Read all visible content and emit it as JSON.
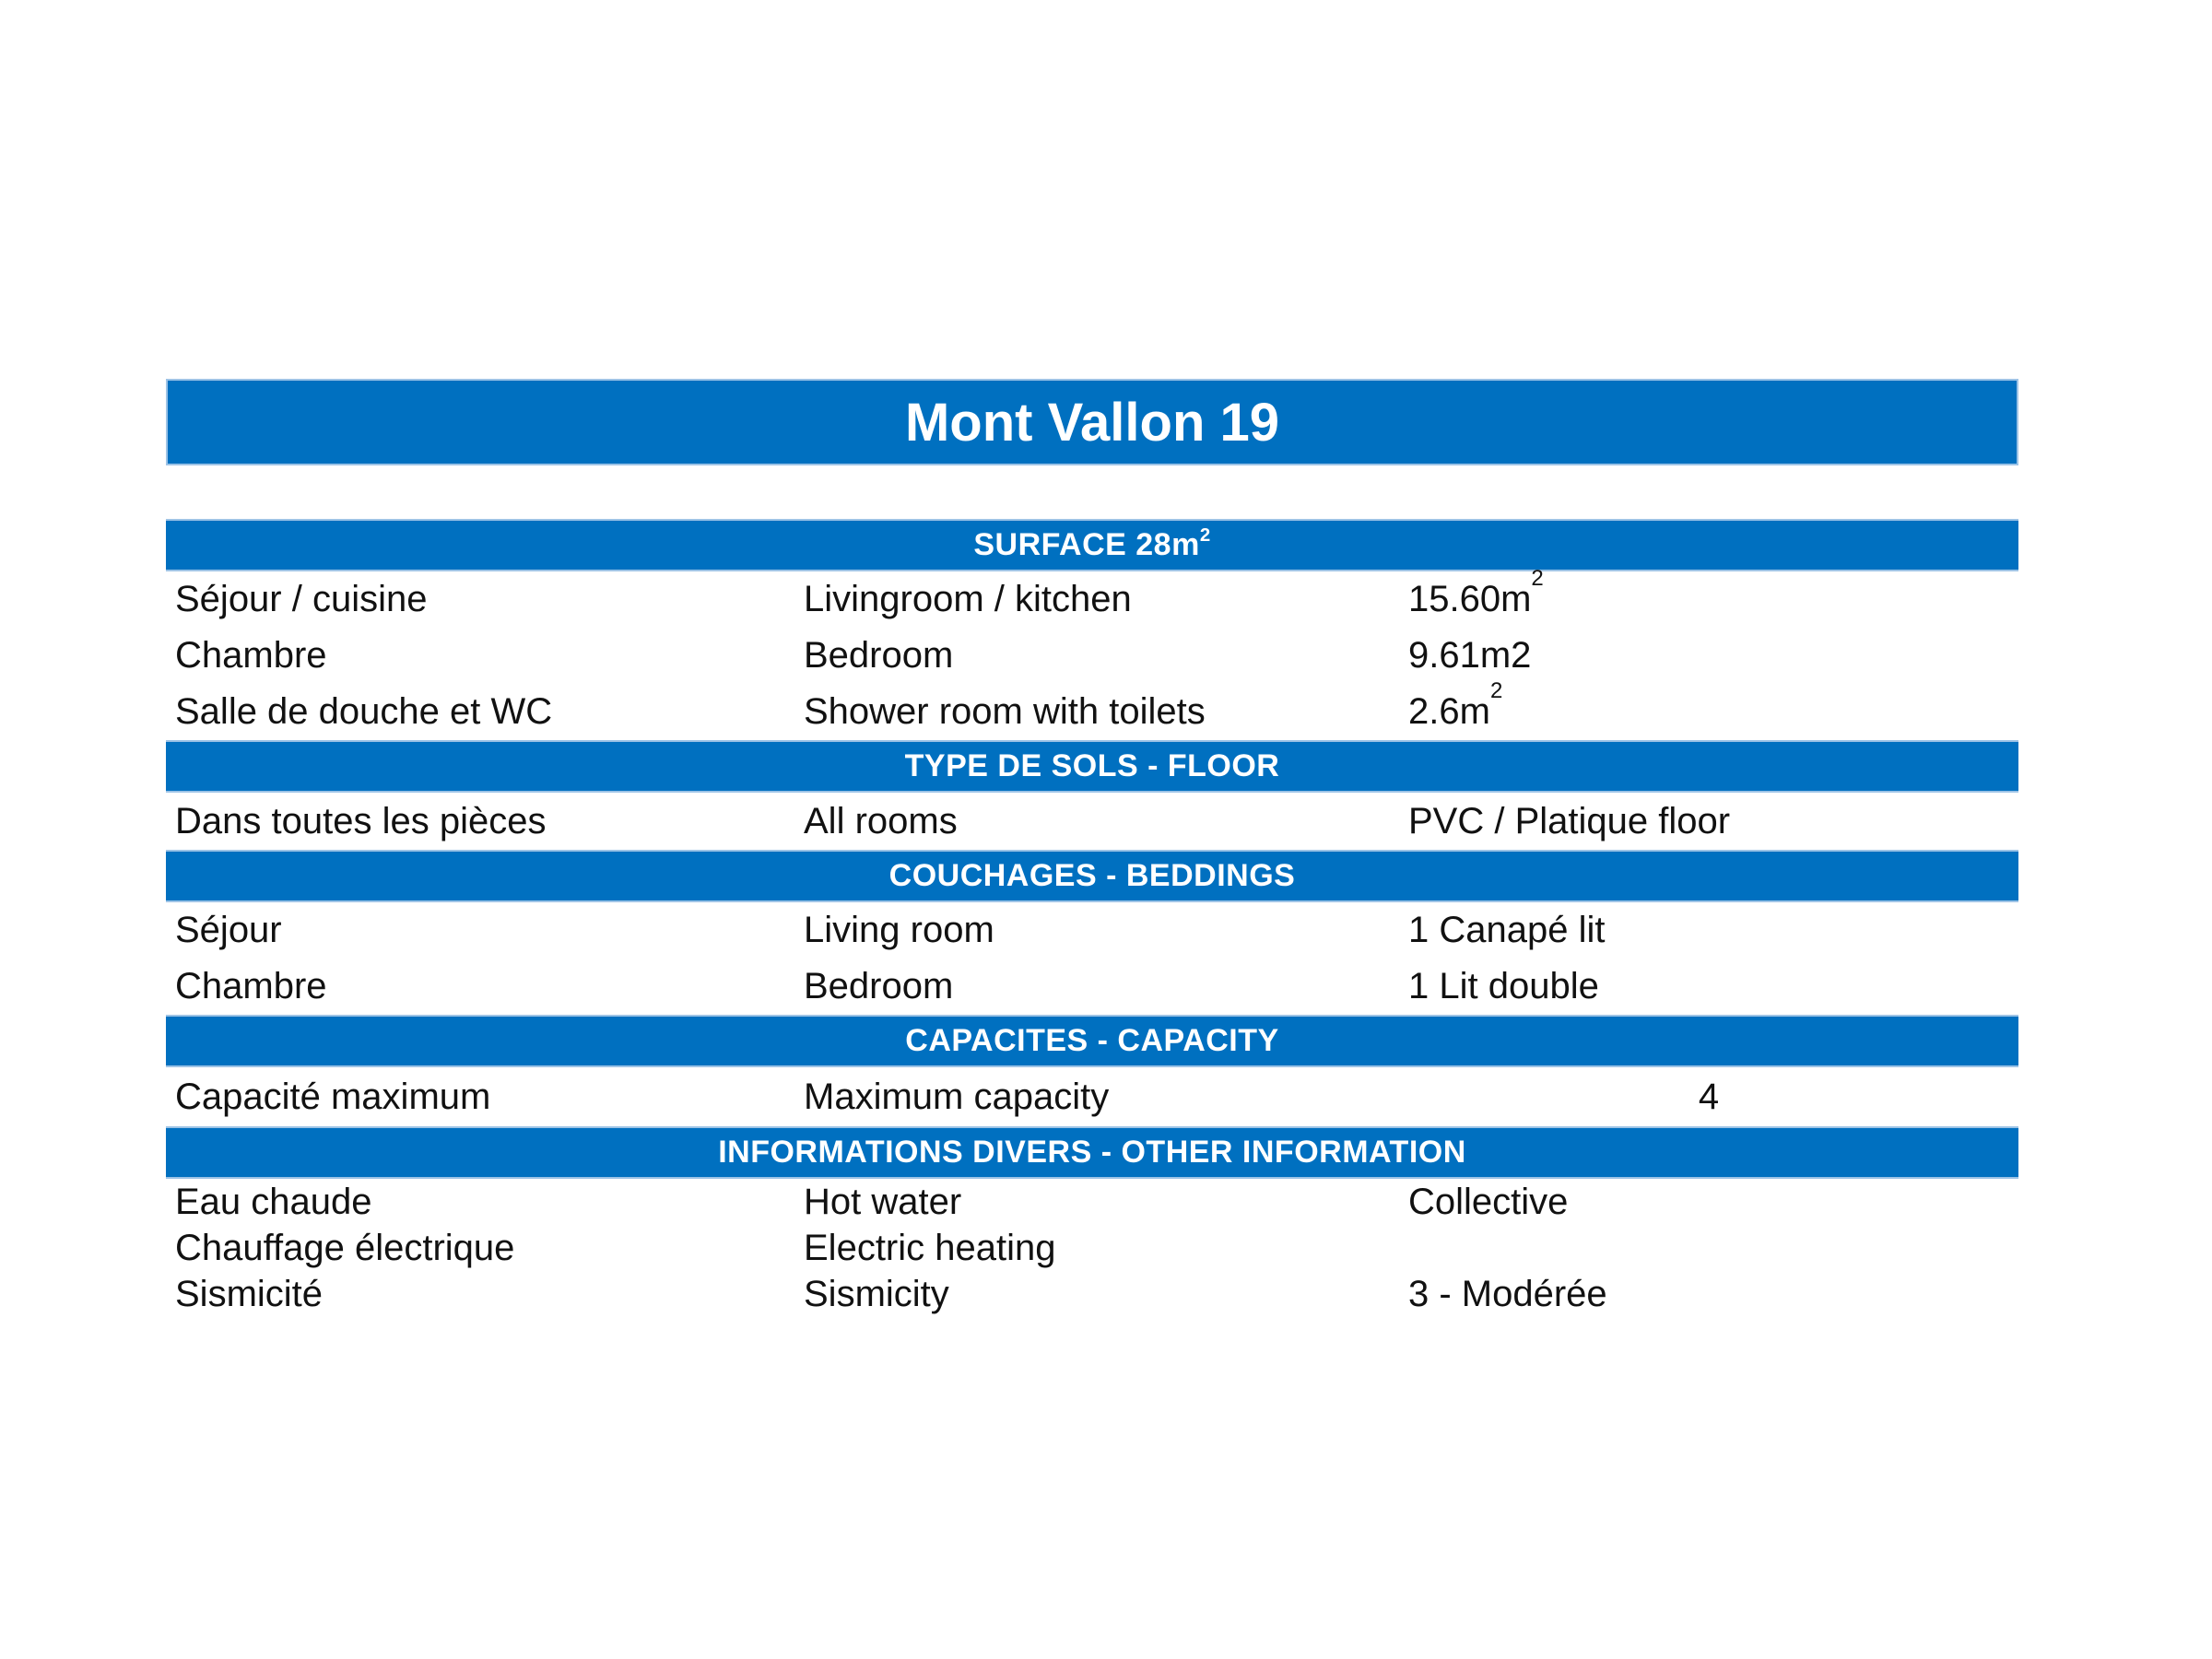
{
  "page": {
    "title": "Mont Vallon 19"
  },
  "colors": {
    "bar_blue": "#0070C0",
    "bar_border_light": "#9DC3E6",
    "header_text": "#FFFFFF",
    "body_text": "#111111",
    "background": "#FFFFFF"
  },
  "sections": [
    {
      "id": "surface",
      "header": {
        "text": "SURFACE 28m",
        "sup": "2"
      },
      "rows": [
        {
          "fr": "Séjour / cuisine",
          "en": "Livingroom / kitchen",
          "value": "15.60m",
          "value_sup": "2"
        },
        {
          "fr": "Chambre",
          "en": "Bedroom",
          "value": "9.61m2",
          "value_sup": ""
        },
        {
          "fr": "Salle de douche et WC",
          "en": "Shower room with toilets",
          "value": "2.6m",
          "value_sup": "2"
        }
      ]
    },
    {
      "id": "floor",
      "header": {
        "text": "TYPE DE SOLS - FLOOR",
        "sup": ""
      },
      "rows": [
        {
          "fr": "Dans toutes les pièces",
          "en": "All rooms",
          "value": "PVC / Platique floor",
          "value_sup": ""
        }
      ]
    },
    {
      "id": "beddings",
      "header": {
        "text": "COUCHAGES - BEDDINGS",
        "sup": ""
      },
      "rows": [
        {
          "fr": "Séjour",
          "en": "Living room",
          "value": "1 Canapé lit",
          "value_sup": ""
        },
        {
          "fr": "Chambre",
          "en": "Bedroom",
          "value": "1 Lit double",
          "value_sup": ""
        }
      ]
    },
    {
      "id": "capacity",
      "header": {
        "text": "CAPACITES - CAPACITY",
        "sup": ""
      },
      "rows": [
        {
          "fr": "Capacité maximum",
          "en": "Maximum capacity",
          "value": "4",
          "value_sup": ""
        }
      ]
    },
    {
      "id": "other",
      "header": {
        "text": "INFORMATIONS DIVERS - OTHER INFORMATION",
        "sup": ""
      },
      "rows": [
        {
          "fr": "Eau chaude",
          "en": "Hot water",
          "value": "Collective",
          "value_sup": ""
        },
        {
          "fr": "Chauffage électrique",
          "en": "Electric heating",
          "value": "",
          "value_sup": ""
        },
        {
          "fr": "Sismicité",
          "en": "Sismicity",
          "value": "3 - Modérée",
          "value_sup": ""
        }
      ]
    }
  ]
}
